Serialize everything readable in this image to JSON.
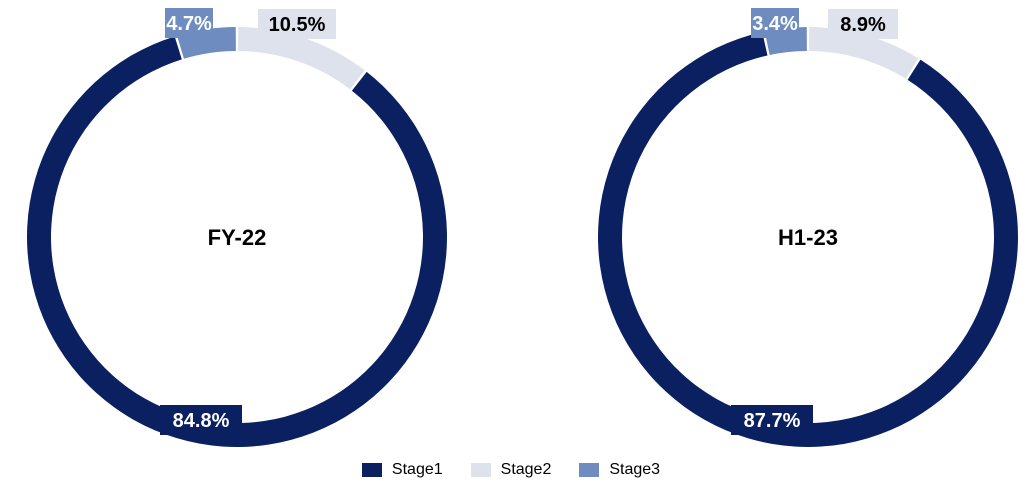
{
  "colors": {
    "stage1": "#0a2060",
    "stage2": "#dde2ec",
    "stage3": "#6e8cbf"
  },
  "chart_data": [
    {
      "type": "pie",
      "subtype": "donut",
      "center_label": "FY-22",
      "categories": [
        "Stage1",
        "Stage2",
        "Stage3"
      ],
      "values": [
        84.8,
        10.5,
        4.7
      ],
      "labels": [
        "84.8%",
        "10.5%",
        "4.7%"
      ],
      "colors": [
        "#0a2060",
        "#dde2ec",
        "#6e8cbf"
      ]
    },
    {
      "type": "pie",
      "subtype": "donut",
      "center_label": "H1-23",
      "categories": [
        "Stage1",
        "Stage2",
        "Stage3"
      ],
      "values": [
        87.7,
        8.9,
        3.4
      ],
      "labels": [
        "87.7%",
        "8.9%",
        "3.4%"
      ],
      "colors": [
        "#0a2060",
        "#dde2ec",
        "#6e8cbf"
      ]
    }
  ],
  "legend": {
    "position": "bottom",
    "items": [
      {
        "label": "Stage1",
        "color": "#0a2060"
      },
      {
        "label": "Stage2",
        "color": "#dde2ec"
      },
      {
        "label": "Stage3",
        "color": "#6e8cbf"
      }
    ]
  }
}
